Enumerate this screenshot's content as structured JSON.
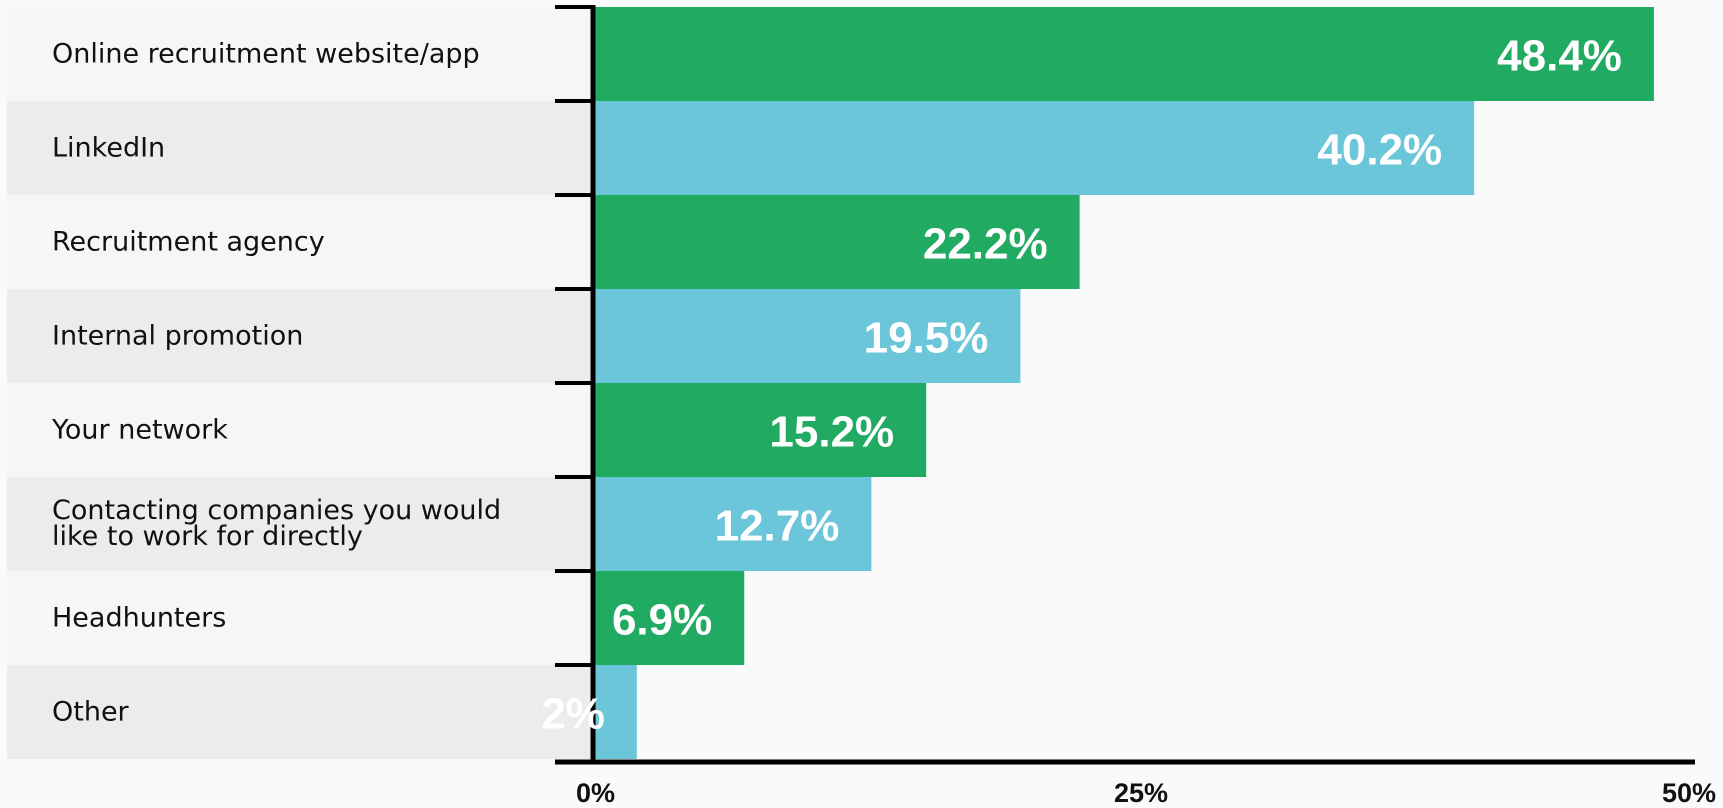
{
  "chart_data": {
    "type": "bar",
    "orientation": "horizontal",
    "categories": [
      "Online recruitment website/app",
      "LinkedIn",
      "Recruitment agency",
      "Internal promotion",
      "Your network",
      "Contacting companies you would like to work for directly",
      "Headhunters",
      "Other"
    ],
    "category_lines": [
      [
        "Online recruitment website/app"
      ],
      [
        "LinkedIn"
      ],
      [
        "Recruitment agency"
      ],
      [
        "Internal promotion"
      ],
      [
        "Your network"
      ],
      [
        "Contacting companies you would",
        "like to work for directly"
      ],
      [
        "Headhunters"
      ],
      [
        "Other"
      ]
    ],
    "values": [
      48.4,
      40.2,
      22.2,
      19.5,
      15.2,
      12.7,
      6.9,
      2
    ],
    "value_labels": [
      "48.4%",
      "40.2%",
      "22.2%",
      "19.5%",
      "15.2%",
      "12.7%",
      "6.9%",
      "2%"
    ],
    "xlim": [
      0,
      50
    ],
    "x_ticks": [
      0,
      25,
      50
    ],
    "x_tick_labels": [
      "0%",
      "25%",
      "50%"
    ],
    "bar_colors": [
      "#21aa61",
      "#6bc6da"
    ],
    "row_background_colors": [
      "#f6f6f6",
      "#ececec"
    ],
    "axis_color": "#000000",
    "title": "",
    "xlabel": "",
    "ylabel": "",
    "grid": false,
    "legend": "none"
  }
}
